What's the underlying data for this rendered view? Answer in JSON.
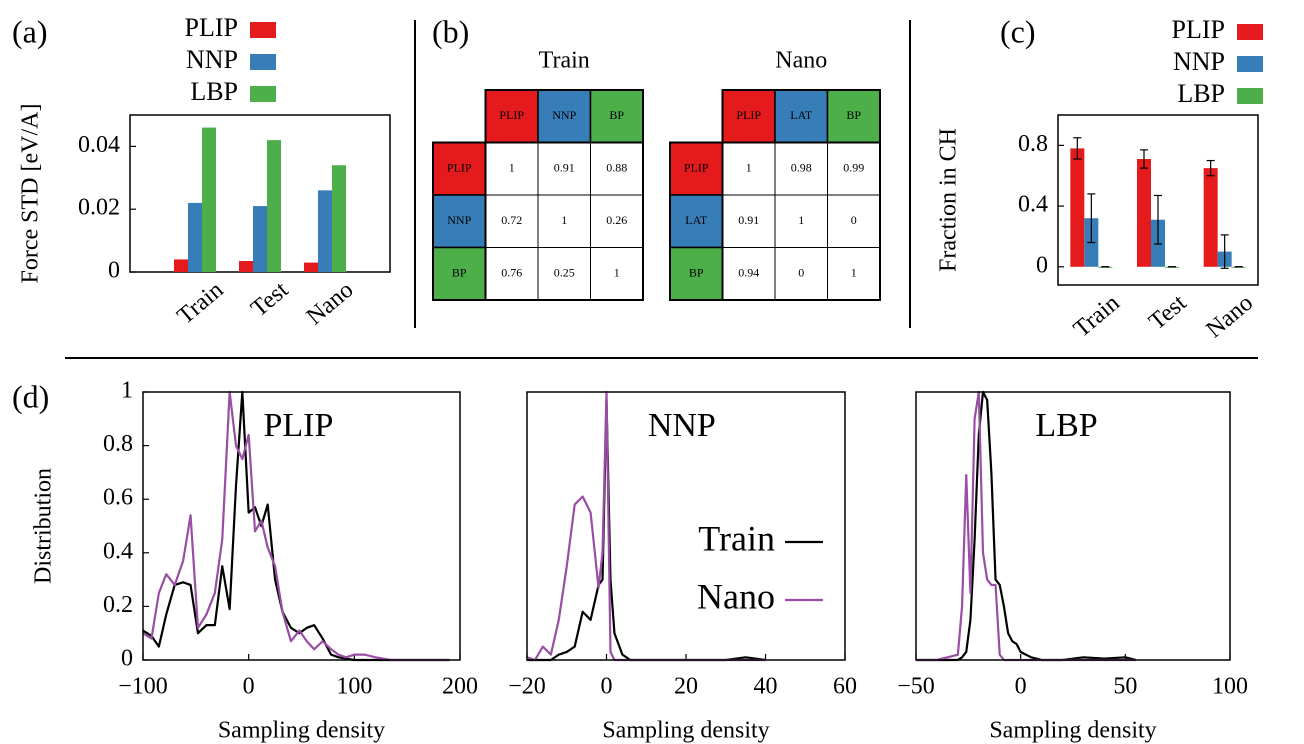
{
  "chart_data": [
    {
      "type": "bar",
      "panel_label": "(a)",
      "ylabel": "Force STD [eV/A]",
      "categories": [
        "Train",
        "Test",
        "Nano"
      ],
      "series": [
        {
          "name": "PLIP",
          "color": "#e41a1c",
          "values": [
            0.004,
            0.0035,
            0.003
          ]
        },
        {
          "name": "NNP",
          "color": "#377eb8",
          "values": [
            0.022,
            0.021,
            0.026
          ]
        },
        {
          "name": "LBP",
          "color": "#4daf4a",
          "values": [
            0.046,
            0.042,
            0.034
          ]
        }
      ],
      "ylim": [
        0,
        0.05
      ],
      "yticks": [
        0,
        0.02,
        0.04
      ],
      "legend": "top"
    },
    {
      "type": "matrix",
      "panel_label": "(b)",
      "title": "Train",
      "labels": [
        "PLIP",
        "NNP",
        "BP"
      ],
      "label_colors": [
        "#e41a1c",
        "#377eb8",
        "#4daf4a"
      ],
      "values": [
        [
          1,
          0.91,
          0.88
        ],
        [
          0.72,
          1,
          0.26
        ],
        [
          0.76,
          0.25,
          1
        ]
      ]
    },
    {
      "type": "matrix",
      "title": "Nano",
      "labels": [
        "PLIP",
        "LAT",
        "BP"
      ],
      "label_colors": [
        "#e41a1c",
        "#377eb8",
        "#4daf4a"
      ],
      "values": [
        [
          1,
          0.98,
          0.99
        ],
        [
          0.91,
          1,
          0
        ],
        [
          0.94,
          0,
          1
        ]
      ]
    },
    {
      "type": "bar",
      "panel_label": "(c)",
      "ylabel": "Fraction in CH",
      "categories": [
        "Train",
        "Test",
        "Nano"
      ],
      "series": [
        {
          "name": "PLIP",
          "color": "#e41a1c",
          "values": [
            0.78,
            0.71,
            0.65
          ],
          "errors": [
            0.07,
            0.06,
            0.05
          ]
        },
        {
          "name": "NNP",
          "color": "#377eb8",
          "values": [
            0.32,
            0.31,
            0.1
          ],
          "errors": [
            0.16,
            0.16,
            0.11
          ]
        },
        {
          "name": "LBP",
          "color": "#4daf4a",
          "values": [
            0,
            0,
            0
          ],
          "errors": [
            0,
            0,
            0
          ]
        }
      ],
      "ylim": [
        -0.12,
        1
      ],
      "yticks": [
        0,
        0.4,
        0.8
      ],
      "legend": "top"
    },
    {
      "type": "line",
      "panel_label": "(d)",
      "title": "PLIP",
      "xlabel": "Sampling density",
      "ylabel": "Distribution",
      "x": [
        -100,
        -92,
        -85,
        -78,
        -70,
        -62,
        -55,
        -48,
        -40,
        -32,
        -25,
        -18,
        -12,
        -6,
        0,
        6,
        12,
        18,
        25,
        32,
        40,
        48,
        55,
        62,
        70,
        78,
        85,
        92,
        100,
        110,
        120,
        135,
        150,
        170,
        190
      ],
      "series": [
        {
          "color": "#000000",
          "values": [
            0.11,
            0.09,
            0.05,
            0.17,
            0.28,
            0.29,
            0.28,
            0.1,
            0.13,
            0.13,
            0.35,
            0.19,
            0.65,
            1.0,
            0.55,
            0.57,
            0.5,
            0.58,
            0.3,
            0.18,
            0.12,
            0.1,
            0.12,
            0.13,
            0.08,
            0.02,
            0.01,
            0.005,
            0,
            0,
            0,
            0,
            0,
            0,
            0
          ]
        },
        {
          "color": "#984ea3",
          "values": [
            0.1,
            0.08,
            0.25,
            0.32,
            0.28,
            0.37,
            0.54,
            0.12,
            0.17,
            0.25,
            0.45,
            1.0,
            0.8,
            0.75,
            0.84,
            0.48,
            0.52,
            0.42,
            0.35,
            0.18,
            0.07,
            0.11,
            0.07,
            0.04,
            0.07,
            0.04,
            0.02,
            0.01,
            0.02,
            0.02,
            0.01,
            0,
            0,
            0,
            0
          ]
        }
      ],
      "xlim": [
        -100,
        200
      ],
      "xticks": [
        {
          "value": -100,
          "label": "−100"
        },
        0,
        100,
        200
      ],
      "ylim": [
        0,
        1
      ],
      "yticks": [
        0,
        0.2,
        0.4,
        0.6,
        0.8,
        1
      ]
    },
    {
      "type": "line",
      "title": "NNP",
      "xlabel": "Sampling density",
      "x": [
        -20,
        -18,
        -16,
        -14,
        -12,
        -10,
        -8,
        -6,
        -4,
        -2,
        -1,
        0,
        1,
        2,
        4,
        6,
        10,
        20,
        30,
        35,
        40
      ],
      "series": [
        {
          "name": "Train",
          "color": "#000000",
          "values": [
            0,
            0,
            0,
            0,
            0.02,
            0.03,
            0.05,
            0.18,
            0.15,
            0.28,
            0.3,
            0.97,
            0.3,
            0.1,
            0.02,
            0,
            0,
            0,
            0,
            0.01,
            0
          ]
        },
        {
          "name": "Nano",
          "color": "#984ea3",
          "values": [
            0.01,
            0,
            0.05,
            0.02,
            0.15,
            0.35,
            0.58,
            0.61,
            0.55,
            0.27,
            0.4,
            1.0,
            0.03,
            0,
            0,
            0,
            0,
            0,
            0,
            0,
            0
          ]
        }
      ],
      "xlim": [
        -20,
        60
      ],
      "xticks": [
        {
          "value": -20,
          "label": "−20"
        },
        0,
        20,
        40,
        60
      ],
      "ylim": [
        0,
        1
      ],
      "legend": "right"
    },
    {
      "type": "line",
      "title": "LBP",
      "xlabel": "Sampling density",
      "x": [
        -50,
        -40,
        -30,
        -28,
        -26,
        -24,
        -22,
        -20,
        -18,
        -16,
        -14,
        -12,
        -10,
        -8,
        -6,
        -4,
        -2,
        0,
        5,
        10,
        20,
        30,
        40,
        50,
        55
      ],
      "series": [
        {
          "color": "#000000",
          "values": [
            0,
            0,
            0,
            0.01,
            0.03,
            0.15,
            0.45,
            0.84,
            1.0,
            0.97,
            0.7,
            0.3,
            0.28,
            0.2,
            0.1,
            0.07,
            0.06,
            0.03,
            0.01,
            0,
            0,
            0.01,
            0.005,
            0.01,
            0
          ]
        },
        {
          "color": "#984ea3",
          "values": [
            0,
            0,
            0.02,
            0.2,
            0.69,
            0.25,
            0.9,
            1.0,
            0.4,
            0.3,
            0.28,
            0.28,
            0.02,
            0,
            0,
            0,
            0,
            0,
            0,
            0,
            0,
            0,
            0,
            0,
            0
          ]
        }
      ],
      "xlim": [
        -50,
        100
      ],
      "xticks": [
        {
          "value": -50,
          "label": "−50"
        },
        0,
        50,
        100
      ],
      "ylim": [
        0,
        1
      ]
    }
  ]
}
